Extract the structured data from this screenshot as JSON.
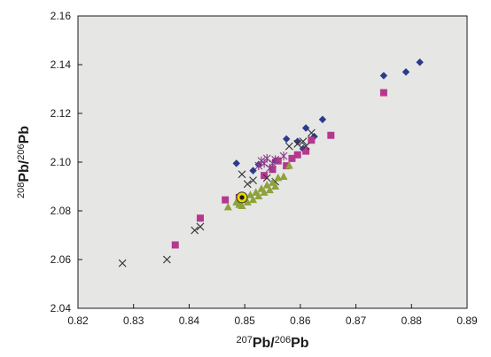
{
  "chart_data": {
    "type": "scatter",
    "title": "",
    "xlabel": {
      "sup1": "207",
      "main1": "Pb/",
      "sup2": "206",
      "main2": "Pb"
    },
    "ylabel": {
      "sup1": "208",
      "main1": "Pb/",
      "sup2": "206",
      "main2": "Pb"
    },
    "xlim": [
      0.82,
      0.89
    ],
    "ylim": [
      2.04,
      2.16
    ],
    "xticks": [
      "0.82",
      "0.83",
      "0.84",
      "0.85",
      "0.86",
      "0.87",
      "0.88",
      "0.89"
    ],
    "yticks": [
      "2.04",
      "2.06",
      "2.08",
      "2.10",
      "2.12",
      "2.14",
      "2.16"
    ],
    "grid": false,
    "legend": "none",
    "plot_background": "#e6e6e4",
    "series": [
      {
        "marker": "diamond",
        "color": "#2b3a8c",
        "points": [
          [
            0.8485,
            2.0995
          ],
          [
            0.8515,
            2.0965
          ],
          [
            0.8525,
            2.099
          ],
          [
            0.8555,
            2.1005
          ],
          [
            0.8575,
            2.1095
          ],
          [
            0.8595,
            2.1085
          ],
          [
            0.8605,
            2.1055
          ],
          [
            0.861,
            2.114
          ],
          [
            0.8625,
            2.1105
          ],
          [
            0.864,
            2.1175
          ],
          [
            0.875,
            2.1355
          ],
          [
            0.879,
            2.137
          ],
          [
            0.8815,
            2.141
          ]
        ]
      },
      {
        "marker": "square",
        "color": "#b5388f",
        "points": [
          [
            0.8375,
            2.066
          ],
          [
            0.842,
            2.077
          ],
          [
            0.8465,
            2.0845
          ],
          [
            0.849,
            2.0855
          ],
          [
            0.8535,
            2.0945
          ],
          [
            0.855,
            2.097
          ],
          [
            0.856,
            2.1005
          ],
          [
            0.8575,
            2.0985
          ],
          [
            0.8585,
            2.1015
          ],
          [
            0.8595,
            2.103
          ],
          [
            0.861,
            2.1045
          ],
          [
            0.862,
            2.109
          ],
          [
            0.8655,
            2.111
          ],
          [
            0.875,
            2.1285
          ]
        ]
      },
      {
        "marker": "x",
        "color": "#333333",
        "points": [
          [
            0.828,
            2.0585
          ],
          [
            0.836,
            2.06
          ],
          [
            0.841,
            2.072
          ],
          [
            0.842,
            2.0735
          ],
          [
            0.8495,
            2.095
          ],
          [
            0.8505,
            2.091
          ],
          [
            0.8515,
            2.0925
          ],
          [
            0.854,
            2.0935
          ],
          [
            0.8555,
            2.092
          ],
          [
            0.858,
            2.1065
          ],
          [
            0.8595,
            2.1075
          ],
          [
            0.8605,
            2.1085
          ],
          [
            0.861,
            2.1065
          ],
          [
            0.862,
            2.112
          ]
        ]
      },
      {
        "marker": "asterisk",
        "color": "#8a3a8a",
        "points": [
          [
            0.8525,
            2.0985
          ],
          [
            0.853,
            2.1005
          ],
          [
            0.8535,
            2.0995
          ],
          [
            0.854,
            2.1015
          ],
          [
            0.8545,
            2.0975
          ],
          [
            0.855,
            2.0995
          ],
          [
            0.8555,
            2.101
          ],
          [
            0.857,
            2.1025
          ]
        ]
      },
      {
        "marker": "triangle",
        "color": "#8da23a",
        "points": [
          [
            0.847,
            2.0815
          ],
          [
            0.8485,
            2.0835
          ],
          [
            0.849,
            2.0825
          ],
          [
            0.8495,
            2.0845
          ],
          [
            0.8495,
            2.082
          ],
          [
            0.85,
            2.085
          ],
          [
            0.8505,
            2.0835
          ],
          [
            0.851,
            2.0865
          ],
          [
            0.8515,
            2.0845
          ],
          [
            0.852,
            2.0875
          ],
          [
            0.8525,
            2.086
          ],
          [
            0.853,
            2.089
          ],
          [
            0.8535,
            2.0875
          ],
          [
            0.854,
            2.0905
          ],
          [
            0.8545,
            2.0885
          ],
          [
            0.855,
            2.0915
          ],
          [
            0.8555,
            2.09
          ],
          [
            0.856,
            2.0935
          ],
          [
            0.857,
            2.094
          ],
          [
            0.858,
            2.0985
          ]
        ]
      },
      {
        "marker": "highlight",
        "color": "#e6d800",
        "points": [
          [
            0.8495,
            2.0855
          ]
        ]
      }
    ]
  }
}
